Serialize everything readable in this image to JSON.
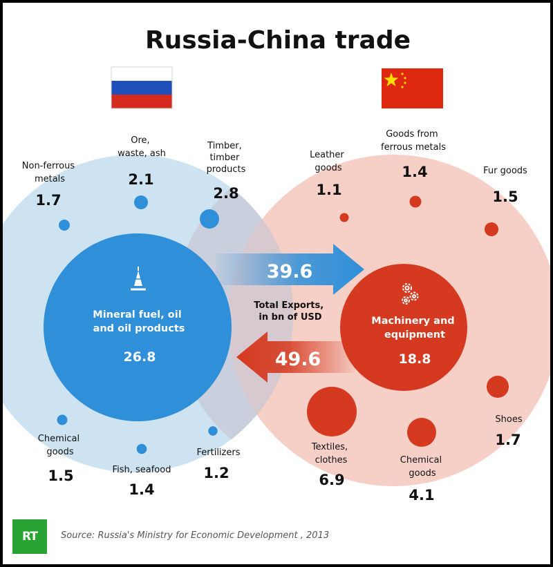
{
  "title": "Russia-China trade",
  "center_label": [
    "Total Exports,",
    "in bn of USD"
  ],
  "source": "Source: Russia's Ministry for Economic Development , 2013",
  "logo_text": "RT",
  "colors": {
    "russia_fill": "#cde3f1",
    "russia_bubble": "#2f8fd8",
    "china_fill": "#f6d0c7",
    "china_bubble": "#d5391f",
    "logo_green": "#2aa334"
  },
  "icons": {
    "russia": "oil-rig-icon",
    "china": "gears-icon"
  },
  "chart_data": {
    "type": "bubble",
    "unit": "bn of USD",
    "flows": [
      {
        "from": "Russia",
        "to": "China",
        "value": 39.6
      },
      {
        "from": "China",
        "to": "Russia",
        "value": 49.6
      }
    ],
    "russia_exports": [
      {
        "label": [
          "Mineral fuel, oil",
          "and oil products"
        ],
        "value": 26.8
      },
      {
        "label": [
          "Non-ferrous",
          "metals"
        ],
        "value": 1.7
      },
      {
        "label": [
          "Ore,",
          "waste, ash"
        ],
        "value": 2.1
      },
      {
        "label": [
          "Timber,",
          "timber",
          "products"
        ],
        "value": 2.8
      },
      {
        "label": [
          "Chemical",
          "goods"
        ],
        "value": 1.5
      },
      {
        "label": [
          "Fish, seafood"
        ],
        "value": 1.4
      },
      {
        "label": [
          "Fertilizers"
        ],
        "value": 1.2
      }
    ],
    "china_exports": [
      {
        "label": [
          "Machinery and",
          "equipment"
        ],
        "value": 18.8
      },
      {
        "label": [
          "Leather",
          "goods"
        ],
        "value": 1.1
      },
      {
        "label": [
          "Goods from",
          "ferrous metals"
        ],
        "value": 1.4
      },
      {
        "label": [
          "Fur goods"
        ],
        "value": 1.5
      },
      {
        "label": [
          "Shoes"
        ],
        "value": 1.7
      },
      {
        "label": [
          "Textiles,",
          "clothes"
        ],
        "value": 6.9
      },
      {
        "label": [
          "Chemical",
          "goods"
        ],
        "value": 4.1
      }
    ]
  }
}
